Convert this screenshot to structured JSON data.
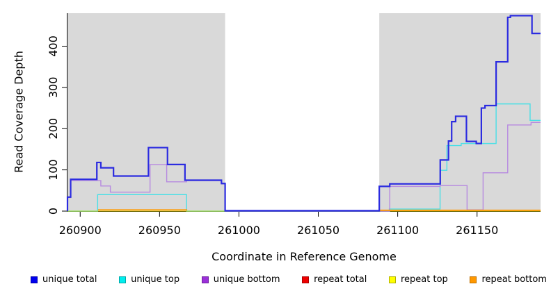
{
  "chart_data": {
    "type": "line",
    "title": "",
    "xlabel": "Coordinate in Reference Genome",
    "ylabel": "Read Coverage Depth",
    "xlim": [
      260892,
      261190
    ],
    "ylim": [
      0,
      480
    ],
    "x_ticks": [
      260900,
      260950,
      261000,
      261050,
      261100,
      261150
    ],
    "x_tick_labels": [
      "260900",
      "260950",
      "261000",
      "261050",
      "261100",
      "261150"
    ],
    "y_ticks": [
      0,
      100,
      200,
      300,
      400
    ],
    "y_tick_labels": [
      "0",
      "100",
      "200",
      "300",
      "400"
    ],
    "grid": false,
    "legend_position": "bottom",
    "plot_background": "#ffffff",
    "shaded_regions": [
      {
        "x1": 260892,
        "x2": 260991.3,
        "color": "#d9d9d9"
      },
      {
        "x1": 261088.4,
        "x2": 261190,
        "color": "#d9d9d9"
      }
    ],
    "draw_order": [
      "repeat total",
      "unique top",
      "repeat top",
      "unique bottom",
      "repeat bottom",
      "unique total"
    ],
    "series": [
      {
        "name": "unique total",
        "color": "#2b2be0",
        "width": 2.2,
        "opacity": 1,
        "points": [
          [
            260892,
            0
          ],
          [
            260892,
            34
          ],
          [
            260894,
            34
          ],
          [
            260894,
            77
          ],
          [
            260910.5,
            77
          ],
          [
            260910.5,
            118
          ],
          [
            260913,
            118
          ],
          [
            260913,
            105
          ],
          [
            260921,
            105
          ],
          [
            260921,
            85
          ],
          [
            260943,
            85
          ],
          [
            260943,
            154
          ],
          [
            260955,
            154
          ],
          [
            260955,
            113
          ],
          [
            260966,
            113
          ],
          [
            260966,
            75
          ],
          [
            260989,
            75
          ],
          [
            260989,
            67
          ],
          [
            260991.3,
            67
          ],
          [
            260991.3,
            1
          ],
          [
            261088.4,
            1
          ],
          [
            261088.4,
            60
          ],
          [
            261095,
            60
          ],
          [
            261095,
            66
          ],
          [
            261126.8,
            66
          ],
          [
            261126.8,
            124
          ],
          [
            261132,
            124
          ],
          [
            261132,
            170
          ],
          [
            261134,
            170
          ],
          [
            261134,
            217
          ],
          [
            261136.5,
            217
          ],
          [
            261136.5,
            230
          ],
          [
            261143.3,
            230
          ],
          [
            261143.3,
            169
          ],
          [
            261149.5,
            169
          ],
          [
            261149.5,
            164
          ],
          [
            261152.7,
            164
          ],
          [
            261152.7,
            250
          ],
          [
            261155,
            250
          ],
          [
            261155,
            256
          ],
          [
            261162,
            256
          ],
          [
            261162,
            362
          ],
          [
            261169.3,
            362
          ],
          [
            261169.3,
            470
          ],
          [
            261171,
            470
          ],
          [
            261171,
            474
          ],
          [
            261184.6,
            474
          ],
          [
            261184.6,
            431
          ],
          [
            261190,
            431
          ]
        ]
      },
      {
        "name": "unique top",
        "color": "#49dfe6",
        "width": 1.4,
        "opacity": 1,
        "points": [
          [
            260892,
            0
          ],
          [
            260911,
            0
          ],
          [
            260911,
            40
          ],
          [
            260967,
            40
          ],
          [
            260967,
            0
          ],
          [
            261094.7,
            0
          ],
          [
            261094.7,
            5
          ],
          [
            261126.7,
            5
          ],
          [
            261126.7,
            99
          ],
          [
            261131,
            99
          ],
          [
            261131,
            159
          ],
          [
            261140,
            159
          ],
          [
            261140,
            164
          ],
          [
            261162,
            164
          ],
          [
            261162,
            260
          ],
          [
            261183.4,
            260
          ],
          [
            261183.4,
            220
          ],
          [
            261190,
            220
          ]
        ]
      },
      {
        "name": "unique bottom",
        "color": "#b78ae0",
        "width": 1.4,
        "opacity": 1,
        "points": [
          [
            260892,
            0
          ],
          [
            260892,
            33
          ],
          [
            260894,
            33
          ],
          [
            260894,
            74
          ],
          [
            260913,
            74
          ],
          [
            260913,
            61
          ],
          [
            260919,
            61
          ],
          [
            260919,
            46
          ],
          [
            260944,
            46
          ],
          [
            260944,
            113
          ],
          [
            260954.5,
            113
          ],
          [
            260954.5,
            71
          ],
          [
            260967,
            71
          ],
          [
            260967,
            74
          ],
          [
            260989,
            74
          ],
          [
            260989,
            66
          ],
          [
            260991.3,
            66
          ],
          [
            260991.3,
            0
          ],
          [
            261095,
            0
          ],
          [
            261095,
            60
          ],
          [
            261126.8,
            60
          ],
          [
            261126.8,
            62
          ],
          [
            261143.7,
            62
          ],
          [
            261143.7,
            3
          ],
          [
            261153.8,
            3
          ],
          [
            261153.8,
            93
          ],
          [
            261169.3,
            93
          ],
          [
            261169.3,
            209
          ],
          [
            261184,
            209
          ],
          [
            261184,
            215
          ],
          [
            261190,
            215
          ]
        ]
      },
      {
        "name": "repeat total",
        "color": "#dd0000",
        "width": 1.2,
        "opacity": 1,
        "points": [
          [
            260911.3,
            3
          ],
          [
            260967.4,
            3
          ],
          null,
          [
            261088.4,
            2
          ],
          [
            261190,
            2
          ]
        ]
      },
      {
        "name": "repeat top",
        "color": "#f0e400",
        "width": 1.5,
        "opacity": 0.6,
        "points": [
          [
            260892,
            0
          ],
          [
            260991.3,
            0
          ],
          null,
          [
            261088.4,
            0
          ],
          [
            261190,
            0
          ]
        ]
      },
      {
        "name": "repeat bottom",
        "color": "#ff9800",
        "width": 1.8,
        "opacity": 1,
        "points": [
          [
            260911.3,
            3
          ],
          [
            260967.4,
            3
          ],
          null,
          [
            261088.4,
            2
          ],
          [
            261190,
            2
          ]
        ]
      }
    ]
  },
  "legend": {
    "items": [
      {
        "label": "unique total",
        "color": "#0000ee",
        "border": "#0000aa"
      },
      {
        "label": "unique top",
        "color": "#00eeee",
        "border": "#00a8a8"
      },
      {
        "label": "unique bottom",
        "color": "#9b30d9",
        "border": "#6e1f9e"
      },
      {
        "label": "repeat total",
        "color": "#ee0000",
        "border": "#a80000"
      },
      {
        "label": "repeat top",
        "color": "#ffff00",
        "border": "#b0b000"
      },
      {
        "label": "repeat bottom",
        "color": "#ff9800",
        "border": "#bf6f00"
      }
    ]
  },
  "axis": {
    "x_title": "Coordinate in Reference Genome",
    "y_title": "Read Coverage Depth"
  }
}
